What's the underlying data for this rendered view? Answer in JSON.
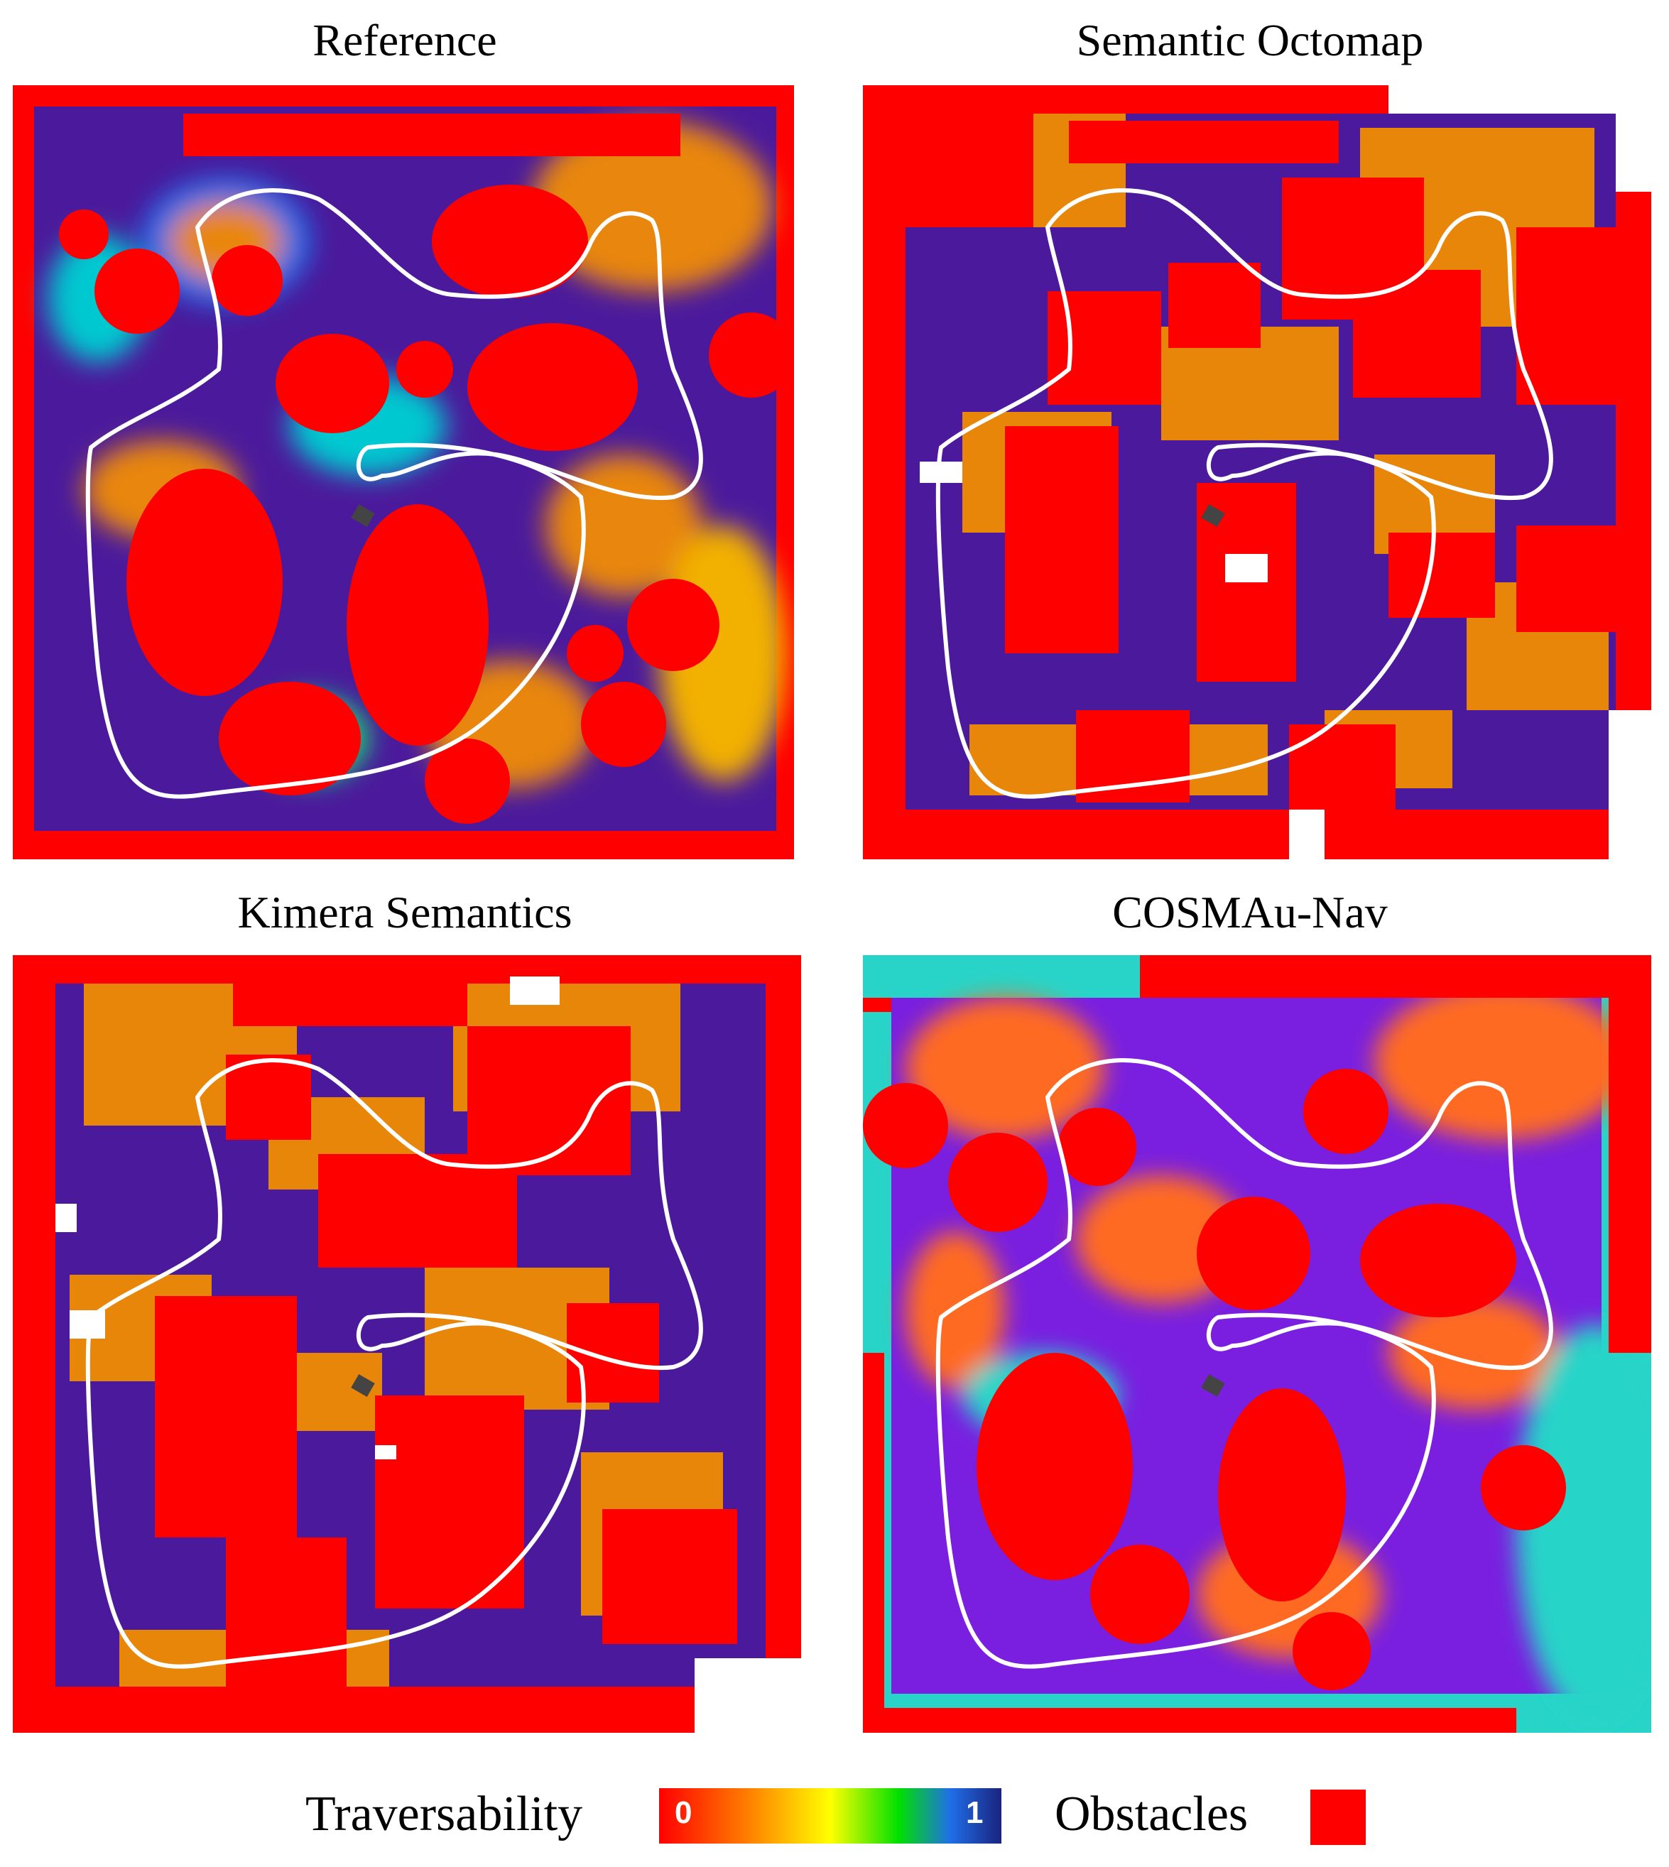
{
  "panels": [
    {
      "title": "Reference"
    },
    {
      "title": "Semantic Octomap"
    },
    {
      "title": "Kimera Semantics"
    },
    {
      "title": "COSMAu-Nav"
    }
  ],
  "legend": {
    "traversability_label": "Traversability",
    "colorbar_min": "0",
    "colorbar_max": "1",
    "obstacles_label": "Obstacles"
  },
  "colors": {
    "obstacle": "#ff0000",
    "low_traversability": "#e8860a",
    "high_traversability": "#4b1a9c",
    "unknown": "#ffffff",
    "path": "#ffffff",
    "cosmau_free": "#7a1fe0",
    "cosmau_edge": "#28d4c8"
  }
}
